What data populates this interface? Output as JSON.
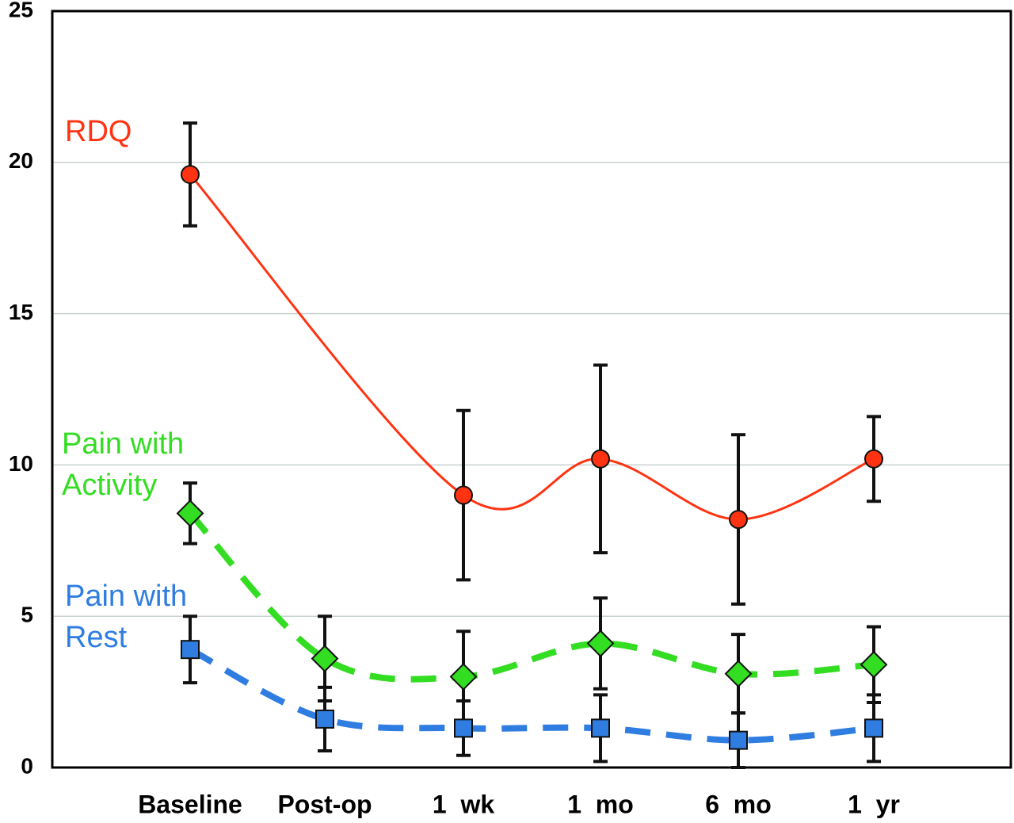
{
  "chart_data": {
    "type": "line",
    "categories": [
      "Baseline",
      "Post-op",
      "1  wk",
      "1  mo",
      "6  mo",
      "1  yr"
    ],
    "ylim": [
      0,
      25
    ],
    "yticks": [
      0,
      5,
      10,
      15,
      20,
      25
    ],
    "grid": true,
    "series": [
      {
        "name": "RDQ",
        "color": "#ff3311",
        "marker": "circle",
        "dashed": false,
        "values": [
          19.6,
          null,
          9.0,
          10.2,
          8.2,
          10.2
        ],
        "errors": [
          1.7,
          null,
          2.8,
          3.1,
          2.8,
          1.4
        ]
      },
      {
        "name": "Pain with Activity",
        "color": "#33dd22",
        "marker": "diamond",
        "dashed": true,
        "values": [
          8.4,
          3.6,
          3.0,
          4.1,
          3.1,
          3.4
        ],
        "errors": [
          1.0,
          1.4,
          1.5,
          1.5,
          1.3,
          1.25
        ]
      },
      {
        "name": "Pain with Rest",
        "color": "#2f7de1",
        "marker": "square",
        "dashed": true,
        "values": [
          3.9,
          1.6,
          1.3,
          1.3,
          0.9,
          1.3
        ],
        "errors": [
          1.1,
          1.05,
          0.9,
          1.1,
          0.9,
          1.1
        ]
      }
    ]
  }
}
